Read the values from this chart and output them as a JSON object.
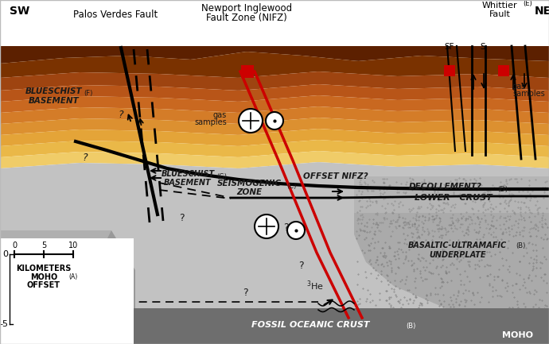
{
  "figsize": [
    6.9,
    4.33
  ],
  "dpi": 100,
  "bg_color": "#ffffff",
  "labels": {
    "SW": "SW",
    "NE": "NE",
    "palos_verdes": "Palos Verdes Fault",
    "newport_line1": "Newport Inglewood",
    "newport_line2": "Fault Zone (NIFZ)",
    "whittier_line1": "Whittier",
    "whittier_line2": "Fault",
    "whittier_sup": "(E)",
    "blueschist_F_sup": "(F)",
    "blueschist_G_sup": "(G)",
    "seismogenic_sup": "(C)",
    "decollement_sup": "(D)",
    "basaltic_sup": "(B)",
    "fossil_sup": "(B)",
    "moho_offset_sup": "(A)",
    "SF": "SF",
    "S": "S"
  },
  "scale_ticks": [
    0,
    5,
    10
  ],
  "colors": {
    "fault_red": "#CC0000",
    "text_dark": "#1A1A1A",
    "white": "#FFFFFF"
  }
}
